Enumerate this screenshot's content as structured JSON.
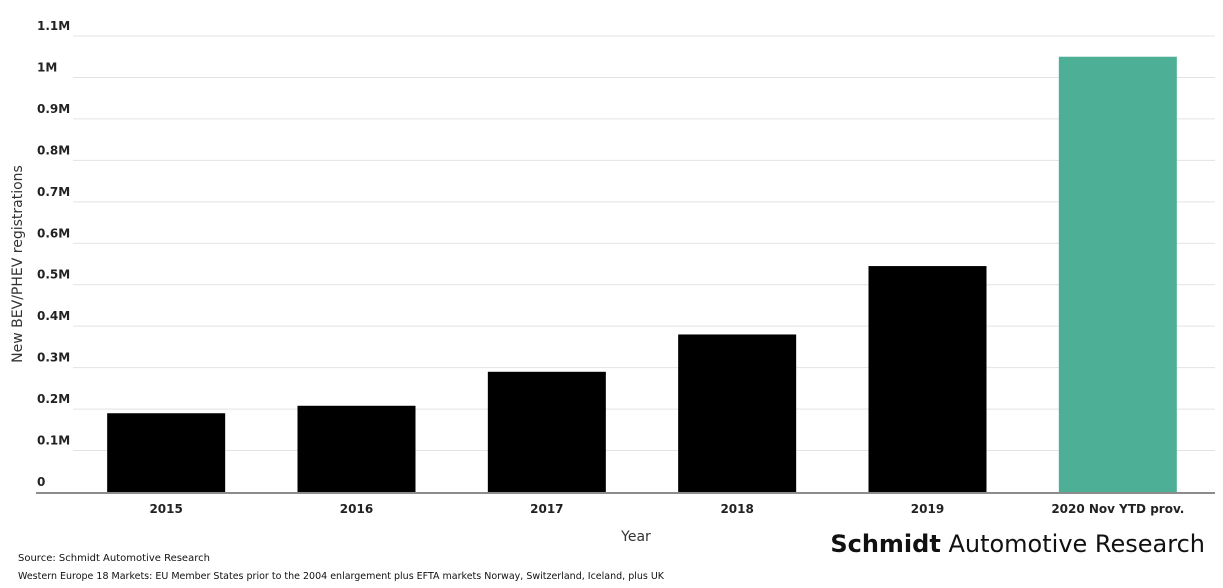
{
  "chart_data": {
    "type": "bar",
    "categories": [
      "2015",
      "2016",
      "2017",
      "2018",
      "2019",
      "2020 Nov YTD prov."
    ],
    "values": [
      190000,
      208000,
      290000,
      380000,
      545000,
      1050000
    ],
    "bar_colors": [
      "#000000",
      "#000000",
      "#000000",
      "#000000",
      "#000000",
      "#4caf96"
    ],
    "xlabel": "Year",
    "ylabel": "New BEV/PHEV registrations",
    "ylim": [
      0,
      1100000
    ],
    "yticks": [
      {
        "value": 0,
        "label": "0"
      },
      {
        "value": 100000,
        "label": "0.1M"
      },
      {
        "value": 200000,
        "label": "0.2M"
      },
      {
        "value": 300000,
        "label": "0.3M"
      },
      {
        "value": 400000,
        "label": "0.4M"
      },
      {
        "value": 500000,
        "label": "0.5M"
      },
      {
        "value": 600000,
        "label": "0.6M"
      },
      {
        "value": 700000,
        "label": "0.7M"
      },
      {
        "value": 800000,
        "label": "0.8M"
      },
      {
        "value": 900000,
        "label": "0.9M"
      },
      {
        "value": 1000000,
        "label": "1M"
      },
      {
        "value": 1100000,
        "label": "1.1M"
      }
    ],
    "grid": true
  },
  "footer": {
    "source": "Source: Schmidt Automotive Research",
    "markets": "Western Europe 18 Markets: EU Member States prior to the 2004 enlargement plus EFTA markets Norway, Switzerland, Iceland, plus UK",
    "brand_bold": "Schmidt",
    "brand_rest": "Automotive Research"
  }
}
